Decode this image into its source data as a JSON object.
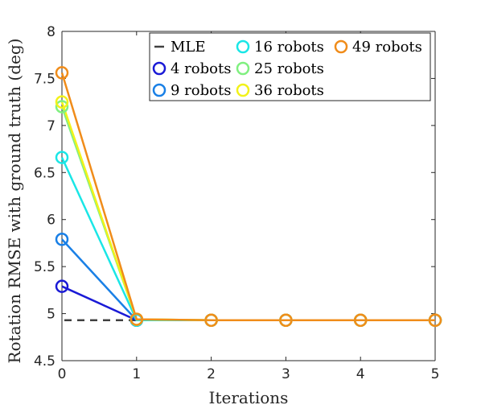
{
  "chart_data": {
    "type": "line",
    "title": "",
    "xlabel": "Iterations",
    "ylabel": "Rotation RMSE with ground truth (deg)",
    "xlim": [
      0,
      5
    ],
    "ylim": [
      4.5,
      8
    ],
    "xticks": [
      "0",
      "1",
      "2",
      "3",
      "4",
      "5"
    ],
    "yticks": [
      "4.5",
      "5",
      "5.5",
      "6",
      "6.5",
      "7",
      "7.5",
      "8"
    ],
    "grid": false,
    "legend_position": "top-right",
    "reference_line": {
      "name": "MLE",
      "value": 4.93,
      "color": "#404040",
      "style": "dashed"
    },
    "series": [
      {
        "name": "4 robots",
        "color": "#1a1ad6",
        "x": [
          0,
          1,
          2,
          3,
          4,
          5
        ],
        "values": [
          5.29,
          4.93,
          4.93,
          4.93,
          4.93,
          4.93
        ]
      },
      {
        "name": "9 robots",
        "color": "#1a80e6",
        "x": [
          0,
          1,
          2,
          3,
          4,
          5
        ],
        "values": [
          5.79,
          4.93,
          4.93,
          4.93,
          4.93,
          4.93
        ]
      },
      {
        "name": "16 robots",
        "color": "#1ae6e6",
        "x": [
          0,
          1,
          2,
          3,
          4,
          5
        ],
        "values": [
          6.66,
          4.93,
          4.93,
          4.93,
          4.93,
          4.93
        ]
      },
      {
        "name": "25 robots",
        "color": "#80f080",
        "x": [
          0,
          1,
          2,
          3,
          4,
          5
        ],
        "values": [
          7.2,
          4.94,
          4.93,
          4.93,
          4.93,
          4.93
        ]
      },
      {
        "name": "36 robots",
        "color": "#f2f21a",
        "x": [
          0,
          1,
          2,
          3,
          4,
          5
        ],
        "values": [
          7.25,
          4.94,
          4.93,
          4.93,
          4.93,
          4.93
        ]
      },
      {
        "name": "49 robots",
        "color": "#f08c1a",
        "x": [
          0,
          1,
          2,
          3,
          4,
          5
        ],
        "values": [
          7.56,
          4.94,
          4.93,
          4.93,
          4.93,
          4.93
        ]
      }
    ]
  }
}
